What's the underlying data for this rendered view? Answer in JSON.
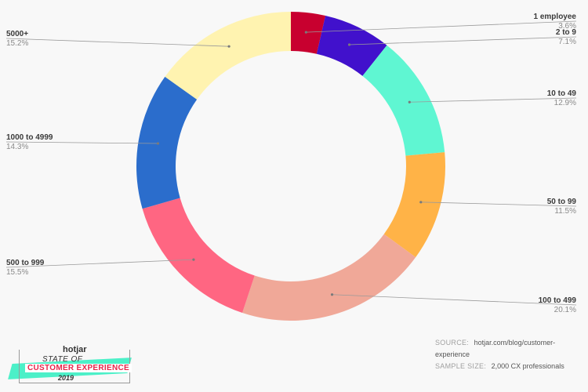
{
  "chart_data": {
    "type": "donut",
    "title": "",
    "slices": [
      {
        "label": "1 employee",
        "value": 3.6,
        "pct_label": "3.6%",
        "color": "#c8002f"
      },
      {
        "label": "2 to 9",
        "value": 7.1,
        "pct_label": "7.1%",
        "color": "#4111cc"
      },
      {
        "label": "10 to 49",
        "value": 12.9,
        "pct_label": "12.9%",
        "color": "#5ff6d2"
      },
      {
        "label": "50 to 99",
        "value": 11.5,
        "pct_label": "11.5%",
        "color": "#ffb347"
      },
      {
        "label": "100 to 499",
        "value": 20.1,
        "pct_label": "20.1%",
        "color": "#f0a898"
      },
      {
        "label": "500 to 999",
        "value": 15.5,
        "pct_label": "15.5%",
        "color": "#ff6682"
      },
      {
        "label": "1000 to 4999",
        "value": 14.3,
        "pct_label": "14.3%",
        "color": "#2b6dcc"
      },
      {
        "label": "5000+",
        "value": 15.2,
        "pct_label": "15.2%",
        "color": "#fff3b0"
      }
    ]
  },
  "footer": {
    "source_key": "SOURCE:",
    "source_value": "hotjar.com/blog/customer-experience",
    "sample_key": "SAMPLE SIZE:",
    "sample_value": "2,000 CX professionals"
  },
  "logo": {
    "brand": "hotjar",
    "line1": "STATE OF",
    "line2": "CUSTOMER EXPERIENCE",
    "line3": "2019"
  }
}
